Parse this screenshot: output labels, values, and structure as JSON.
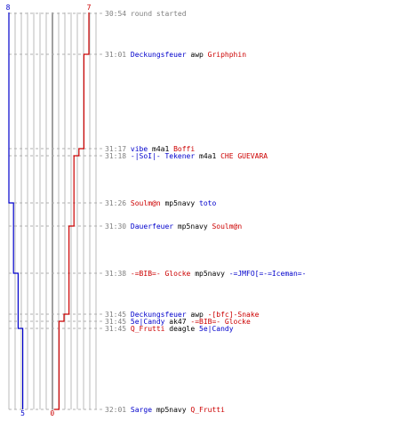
{
  "colors": {
    "team_a": "#0000cc",
    "team_b": "#cc0000",
    "grid": "#bbbbbb",
    "grid_center": "#777777",
    "time": "#808080",
    "neutral": "#000000"
  },
  "axis": {
    "team_a_start": "8",
    "team_b_start": "7",
    "team_a_end": "5",
    "team_b_end": "0"
  },
  "events": [
    {
      "time": "30:54",
      "text": "round started",
      "kind": "start"
    },
    {
      "time": "31:01",
      "killer": "Deckungsfeuer",
      "killer_team": "a",
      "weapon": "awp",
      "victim": "Griphphin",
      "victim_team": "b"
    },
    {
      "time": "31:17",
      "killer": "vibe",
      "killer_team": "a",
      "weapon": "m4a1",
      "victim": "Boffi",
      "victim_team": "b"
    },
    {
      "time": "31:18",
      "killer": "-|SoI|- Tekener",
      "killer_team": "a",
      "weapon": "m4a1",
      "victim": "CHE GUEVARA",
      "victim_team": "b"
    },
    {
      "time": "31:26",
      "killer": "Soulm@n",
      "killer_team": "b",
      "weapon": "mp5navy",
      "victim": "toto",
      "victim_team": "a"
    },
    {
      "time": "31:30",
      "killer": "Dauerfeuer",
      "killer_team": "a",
      "weapon": "mp5navy",
      "victim": "Soulm@n",
      "victim_team": "b"
    },
    {
      "time": "31:38",
      "killer": "-=BIB=- Glocke",
      "killer_team": "b",
      "weapon": "mp5navy",
      "victim": "-=JMFO[=-=Iceman=-",
      "victim_team": "a"
    },
    {
      "time": "31:45",
      "killer": "Deckungsfeuer",
      "killer_team": "a",
      "weapon": "awp",
      "victim": "-[bfc]-Snake",
      "victim_team": "b"
    },
    {
      "time": "31:45",
      "killer": "5e|Candy",
      "killer_team": "a",
      "weapon": "ak47",
      "victim": "-=BIB=- Glocke",
      "victim_team": "b"
    },
    {
      "time": "31:45",
      "killer": "Q_Frutti",
      "killer_team": "b",
      "weapon": "deagle",
      "victim": "5e|Candy",
      "victim_team": "a"
    },
    {
      "time": "32:01",
      "killer": "Sarge",
      "killer_team": "a",
      "weapon": "mp5navy",
      "victim": "Q_Frutti",
      "victim_team": "b"
    }
  ]
}
